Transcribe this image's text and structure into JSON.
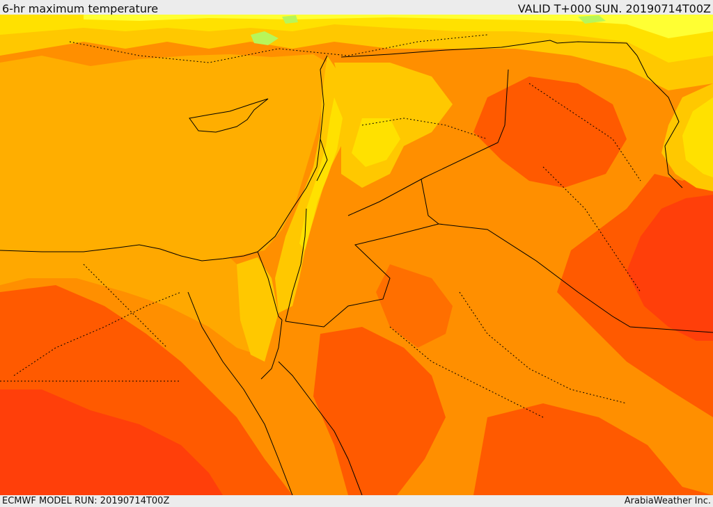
{
  "header": {
    "title": "6-hr maximum temperature",
    "valid": "VALID T+000 SUN. 20190714T00Z"
  },
  "footer": {
    "model_run": "ECMWF MODEL RUN: 20190714T00Z",
    "credit": "ArabiaWeather Inc."
  },
  "map": {
    "field": "6-hr maximum temperature",
    "colors": {
      "cool_green": "#b8f55a",
      "light_yellow": "#ffff33",
      "yellow": "#ffe100",
      "light_orange": "#ffc800",
      "sea_orange": "#ffae00",
      "orange": "#ff8f00",
      "dark_orange": "#ff6f00",
      "red_orange": "#ff5a00",
      "red": "#ff3f0a",
      "border_line": "#000000"
    }
  }
}
